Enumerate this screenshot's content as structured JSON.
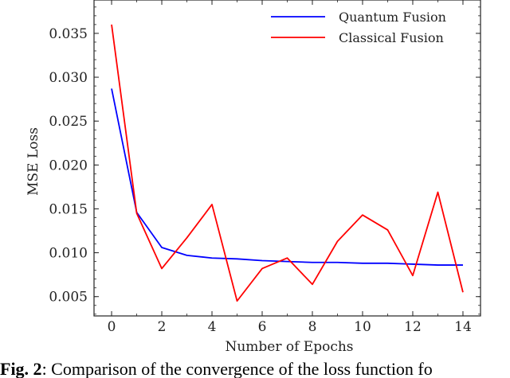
{
  "chart_data": {
    "type": "line",
    "x": [
      0,
      1,
      2,
      3,
      4,
      5,
      6,
      7,
      8,
      9,
      10,
      11,
      12,
      13,
      14
    ],
    "series": [
      {
        "name": "Quantum Fusion",
        "color": "#0000ff",
        "values": [
          0.0287,
          0.0146,
          0.0106,
          0.0097,
          0.0094,
          0.0093,
          0.0091,
          0.009,
          0.0089,
          0.0089,
          0.0088,
          0.0088,
          0.0087,
          0.0086,
          0.0086
        ]
      },
      {
        "name": "Classical Fusion",
        "color": "#ff0000",
        "values": [
          0.036,
          0.0145,
          0.0082,
          0.0117,
          0.0155,
          0.0045,
          0.0082,
          0.0094,
          0.0064,
          0.0113,
          0.0143,
          0.0126,
          0.0074,
          0.0169,
          0.0055
        ]
      }
    ],
    "xlabel": "Number of Epochs",
    "ylabel": "MSE Loss",
    "xlim": [
      -0.7,
      14.7
    ],
    "ylim": [
      0.0028,
      0.0388
    ],
    "xticks": [
      0,
      2,
      4,
      6,
      8,
      10,
      12,
      14
    ],
    "yticks": [
      0.005,
      0.01,
      0.015,
      0.02,
      0.025,
      0.03,
      0.035
    ],
    "ytick_labels": [
      "0.005",
      "0.010",
      "0.015",
      "0.020",
      "0.025",
      "0.030",
      "0.035"
    ],
    "grid": false,
    "legend_position": "top-right"
  },
  "caption": {
    "label": "Fig. 2",
    "text": ": Comparison of the convergence of the loss function fo"
  }
}
